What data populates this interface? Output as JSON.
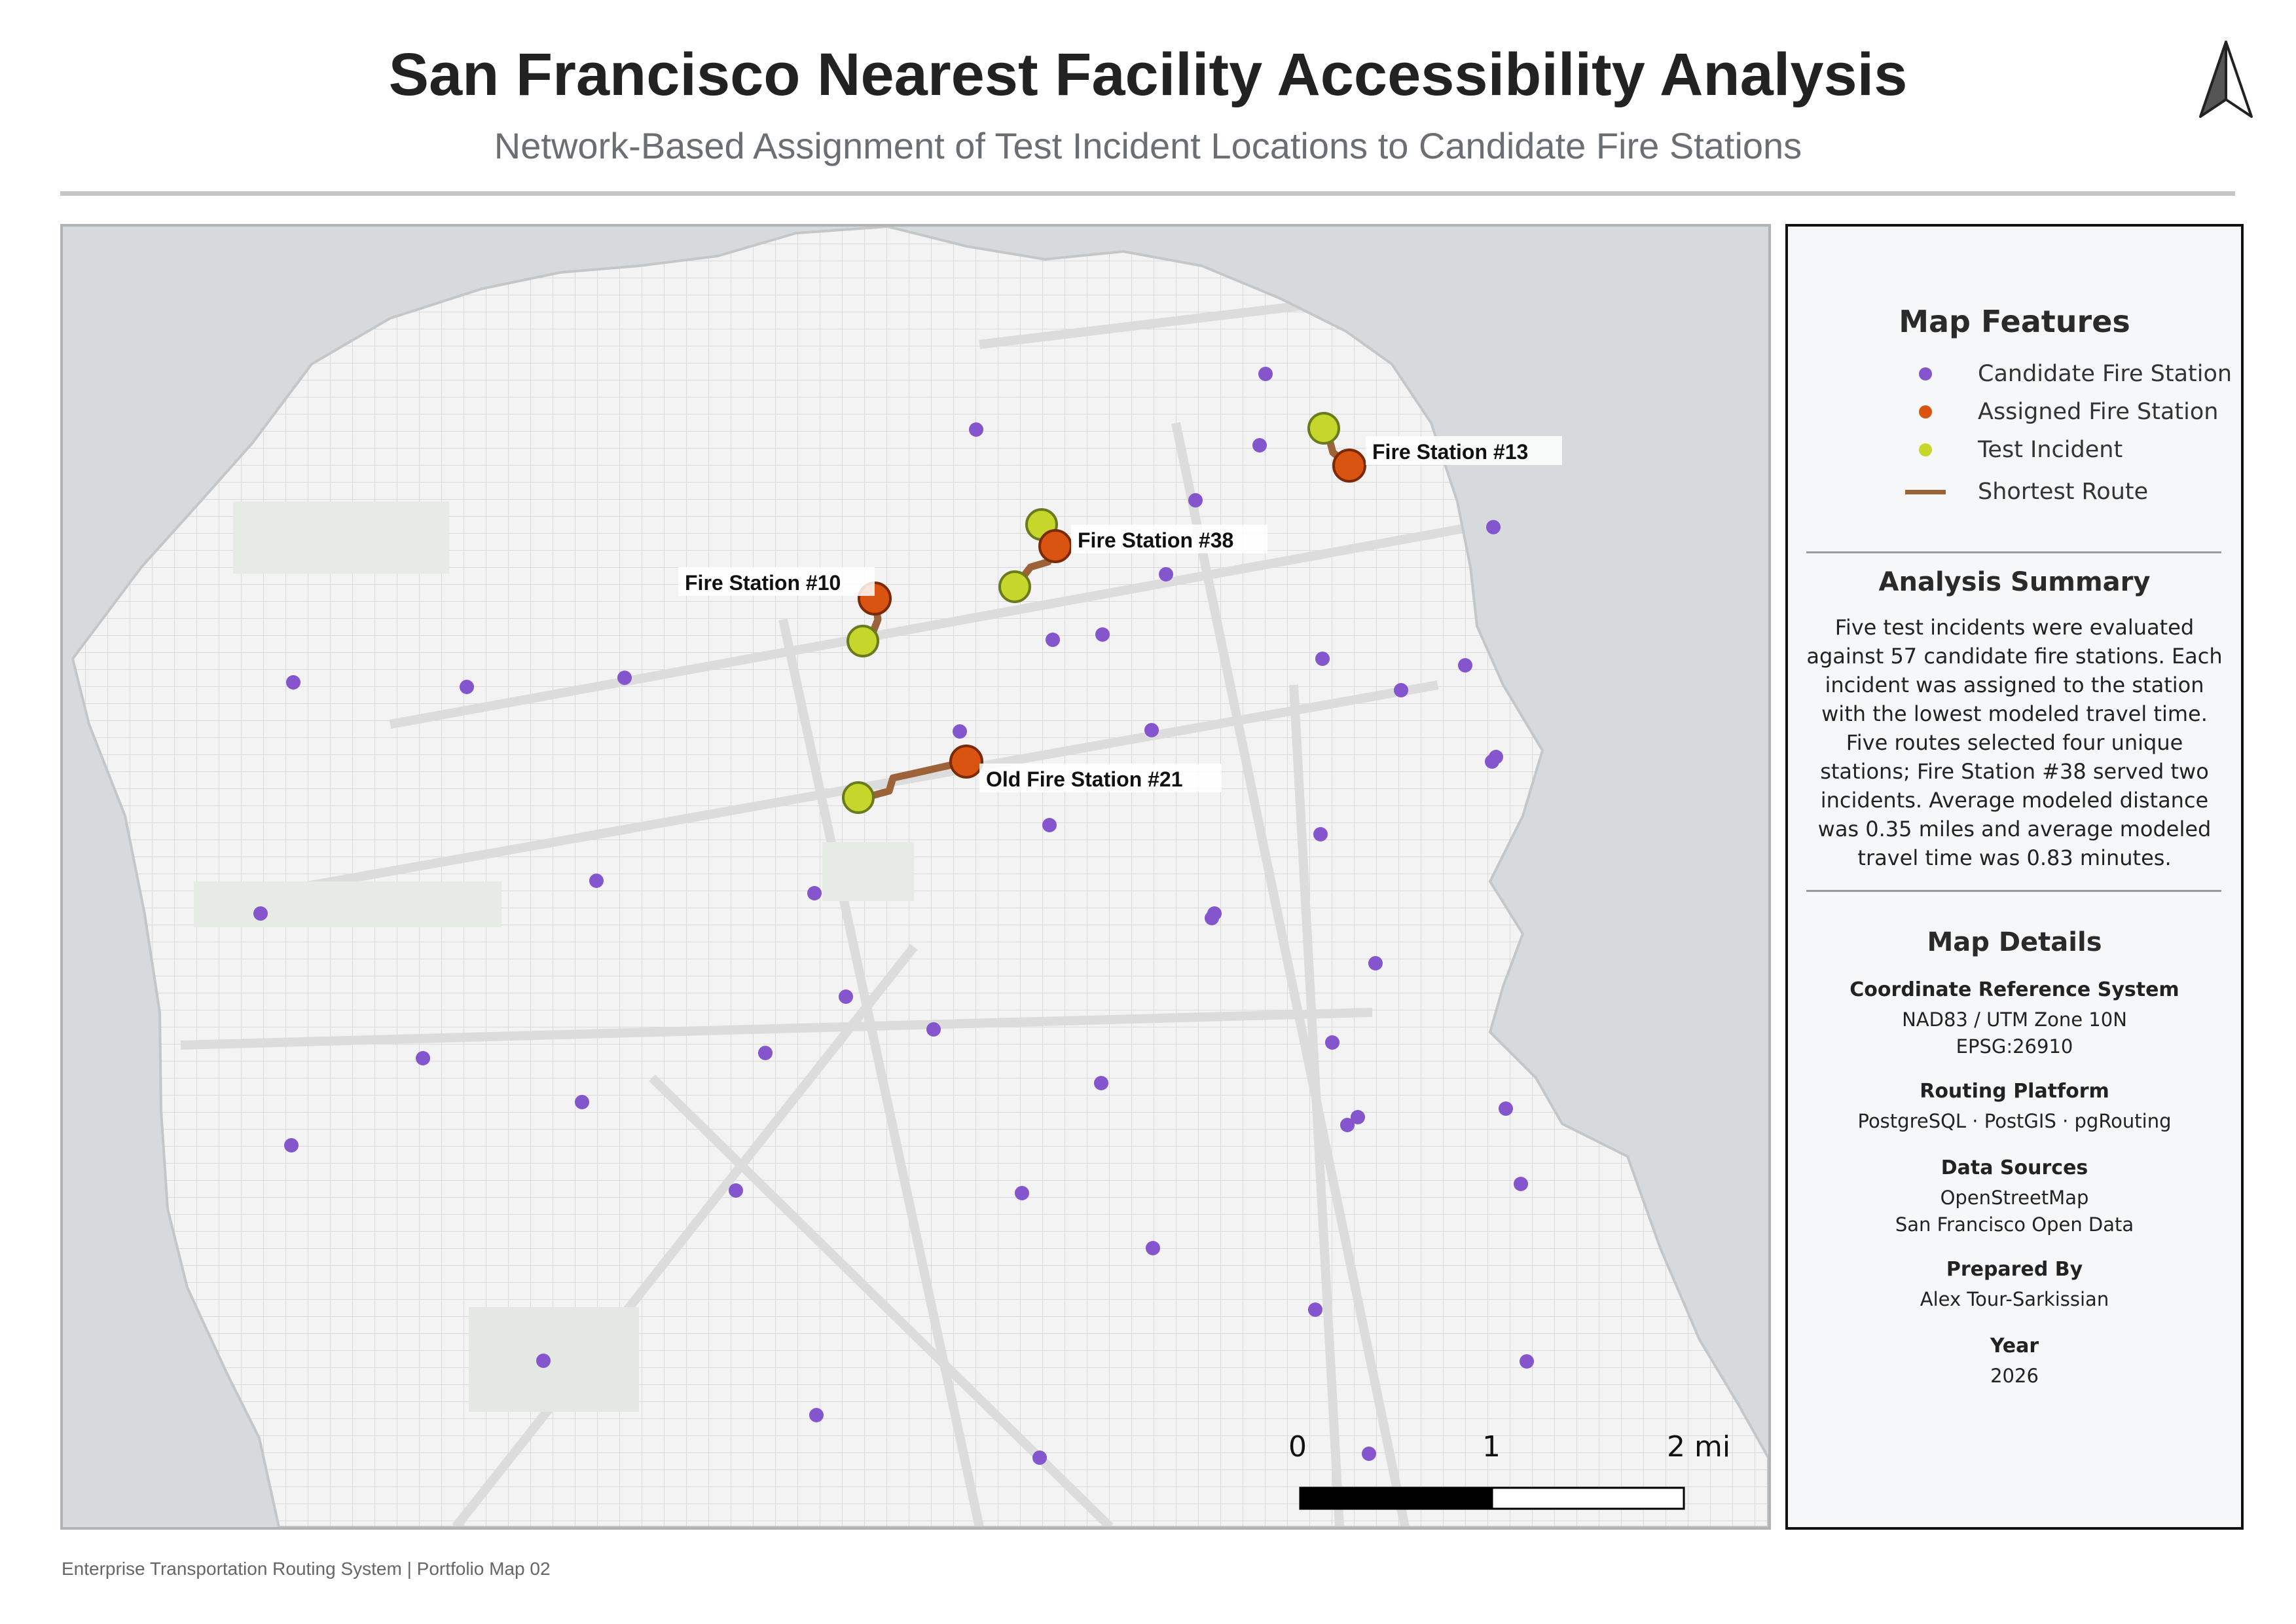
{
  "title": "San Francisco Nearest Facility Accessibility Analysis",
  "subtitle": "Network-Based Assignment of Test Incident Locations to Candidate Fire Stations",
  "north_arrow_icon": "north-arrow-icon",
  "colors": {
    "candidate_station": "#8455cc",
    "assigned_station": "#d95410",
    "test_incident": "#c7d62a",
    "route": "#9c6238",
    "water": "#d7dadc",
    "land": "#f3f3f3"
  },
  "map": {
    "station_labels": [
      "Fire Station #13",
      "Fire Station #38",
      "Fire Station #10",
      "Old Fire Station #21"
    ],
    "scale_bar": {
      "labels": [
        "0",
        "1",
        "2 mi"
      ]
    }
  },
  "legend": {
    "title": "Map Features",
    "items": [
      {
        "label": "Candidate Fire Station",
        "symbol": "candidate-dot"
      },
      {
        "label": "Assigned Fire Station",
        "symbol": "assigned-dot"
      },
      {
        "label": "Test Incident",
        "symbol": "incident-dot"
      },
      {
        "label": "Shortest Route",
        "symbol": "route-line"
      }
    ]
  },
  "summary": {
    "title": "Analysis Summary",
    "text": "Five test incidents were evaluated against 57 candidate fire stations. Each incident was assigned to the station with the lowest modeled travel time. Five routes selected four unique stations; Fire Station #38 served two incidents. Average modeled distance was 0.35 miles and average modeled travel time was 0.83 minutes."
  },
  "details": {
    "title": "Map Details",
    "crs_label": "Coordinate Reference System",
    "crs_value_1": "NAD83 / UTM Zone 10N",
    "crs_value_2": "EPSG:26910",
    "routing_label": "Routing Platform",
    "routing_value": "PostgreSQL · PostGIS · pgRouting",
    "sources_label": "Data Sources",
    "sources_value_1": "OpenStreetMap",
    "sources_value_2": "San Francisco Open Data",
    "prepared_label": "Prepared By",
    "prepared_value": "Alex Tour-Sarkissian",
    "year_label": "Year",
    "year_value": "2026"
  },
  "footer": "Enterprise Transportation Routing System | Portfolio Map 02"
}
